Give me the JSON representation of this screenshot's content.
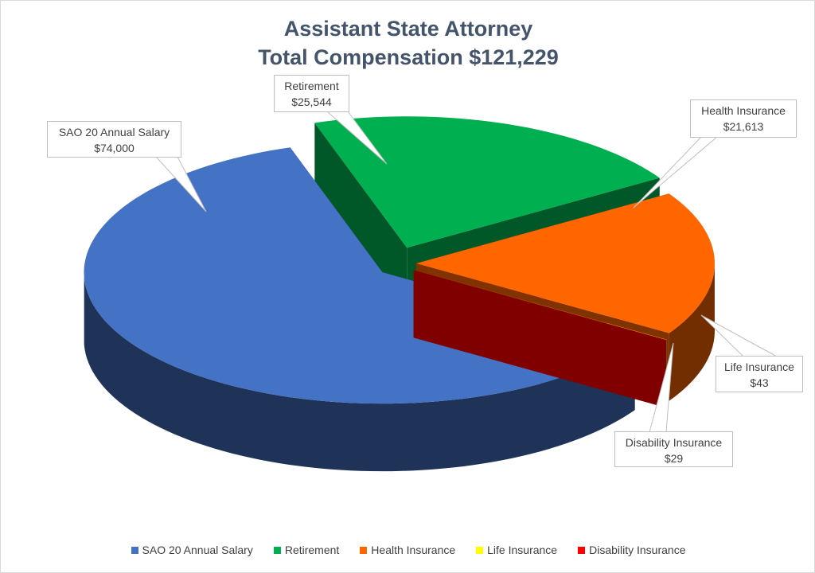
{
  "chart_data": {
    "type": "pie",
    "style": "3d-exploded",
    "title": "Assistant State Attorney",
    "subtitle": "Total Compensation $121,229",
    "legend_position": "bottom",
    "slices": [
      {
        "name": "SAO 20 Annual Salary",
        "value": 74000,
        "label": "$74,000",
        "color": "#4472C4"
      },
      {
        "name": "Retirement",
        "value": 25544,
        "label": "$25,544",
        "color": "#00B050"
      },
      {
        "name": "Health Insurance",
        "value": 21613,
        "label": "$21,613",
        "color": "#FF6600"
      },
      {
        "name": "Life Insurance",
        "value": 43,
        "label": "$43",
        "color": "#FFFF00"
      },
      {
        "name": "Disability Insurance",
        "value": 29,
        "label": "$29",
        "color": "#FF0000"
      }
    ]
  }
}
